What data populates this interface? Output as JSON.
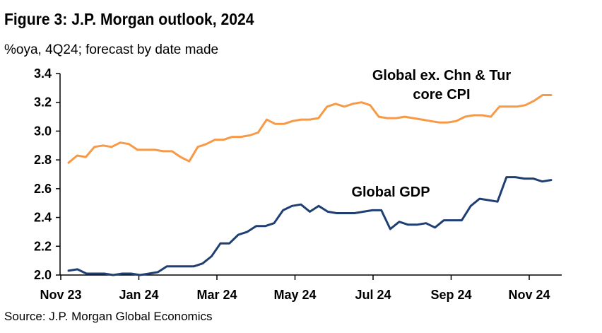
{
  "header": {
    "title": "Figure 3: J.P. Morgan outlook, 2024",
    "subtitle": "%oya, 4Q24; forecast by date made"
  },
  "footer": {
    "source": "Source: J.P. Morgan Global Economics"
  },
  "colors": {
    "cpi": "#F79A47",
    "gdp": "#1F3F73",
    "axis": "#000000"
  },
  "chart_data": {
    "type": "line",
    "title": "Figure 3: J.P. Morgan outlook, 2024",
    "subtitle": "%oya, 4Q24; forecast by date made",
    "xlabel": "",
    "ylabel": "",
    "ylim": [
      2.0,
      3.4
    ],
    "yticks": [
      "2.0",
      "2.2",
      "2.4",
      "2.6",
      "2.8",
      "3.0",
      "3.2",
      "3.4"
    ],
    "xticks": [
      "Nov 23",
      "Jan 24",
      "Mar 24",
      "May 24",
      "Jul 24",
      "Sep 24",
      "Nov 24"
    ],
    "grid": false,
    "x_unit": "weekly forecast dates, Nov 2023 to Nov 2024",
    "series": [
      {
        "name": "Global ex. Chn & Tur core CPI",
        "label_lines": [
          "Global ex. Chn & Tur",
          "core CPI"
        ],
        "values": [
          2.78,
          2.83,
          2.82,
          2.89,
          2.9,
          2.89,
          2.92,
          2.91,
          2.87,
          2.87,
          2.87,
          2.86,
          2.86,
          2.82,
          2.79,
          2.89,
          2.91,
          2.94,
          2.94,
          2.96,
          2.96,
          2.97,
          2.99,
          3.08,
          3.05,
          3.05,
          3.07,
          3.08,
          3.08,
          3.09,
          3.17,
          3.19,
          3.17,
          3.19,
          3.2,
          3.18,
          3.1,
          3.09,
          3.09,
          3.1,
          3.09,
          3.08,
          3.07,
          3.06,
          3.06,
          3.07,
          3.1,
          3.11,
          3.11,
          3.1,
          3.17,
          3.17,
          3.17,
          3.18,
          3.21,
          3.25,
          3.25
        ]
      },
      {
        "name": "Global GDP",
        "label_lines": [
          "Global GDP"
        ],
        "values": [
          2.03,
          2.04,
          2.01,
          2.01,
          2.01,
          2.0,
          2.01,
          2.01,
          2.0,
          2.01,
          2.02,
          2.06,
          2.06,
          2.06,
          2.06,
          2.08,
          2.13,
          2.22,
          2.22,
          2.28,
          2.3,
          2.34,
          2.34,
          2.36,
          2.45,
          2.48,
          2.49,
          2.44,
          2.48,
          2.44,
          2.43,
          2.43,
          2.43,
          2.44,
          2.45,
          2.45,
          2.32,
          2.37,
          2.35,
          2.35,
          2.36,
          2.33,
          2.38,
          2.38,
          2.38,
          2.48,
          2.53,
          2.52,
          2.51,
          2.68,
          2.68,
          2.67,
          2.67,
          2.65,
          2.66
        ]
      }
    ]
  }
}
